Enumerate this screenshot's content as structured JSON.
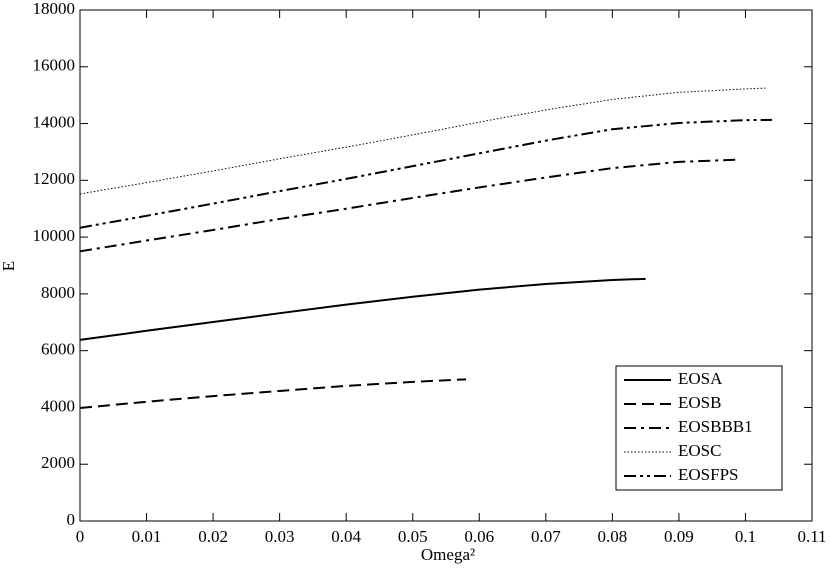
{
  "chart_data": {
    "type": "line",
    "x_label": "Omega²",
    "y_label": "E",
    "xlim": [
      0,
      0.11
    ],
    "xticks": [
      0,
      0.01,
      0.02,
      0.03,
      0.04,
      0.05,
      0.06,
      0.07,
      0.08,
      0.09,
      0.1,
      0.11
    ],
    "ylim": [
      0,
      18000
    ],
    "yticks": [
      0,
      2000,
      4000,
      6000,
      8000,
      10000,
      12000,
      14000,
      16000,
      18000
    ],
    "legend": "lower right",
    "series": [
      {
        "name": "EOSA",
        "color": "#000000",
        "dash": "solid",
        "x": [
          0,
          0.01,
          0.02,
          0.03,
          0.04,
          0.05,
          0.06,
          0.07,
          0.08,
          0.085
        ],
        "values": [
          6380,
          6700,
          7010,
          7320,
          7620,
          7900,
          8150,
          8350,
          8490,
          8530
        ]
      },
      {
        "name": "EOSB",
        "color": "#000000",
        "dash": "dashed",
        "x": [
          0,
          0.01,
          0.02,
          0.03,
          0.04,
          0.05,
          0.058
        ],
        "values": [
          3980,
          4200,
          4400,
          4580,
          4760,
          4900,
          4990
        ]
      },
      {
        "name": "EOSBBB1",
        "color": "#000000",
        "dash": "dashdot",
        "x": [
          0,
          0.01,
          0.02,
          0.03,
          0.04,
          0.05,
          0.06,
          0.07,
          0.08,
          0.09,
          0.099
        ],
        "values": [
          9500,
          9880,
          10250,
          10640,
          11000,
          11380,
          11750,
          12100,
          12430,
          12650,
          12730
        ]
      },
      {
        "name": "EOSC",
        "color": "#000000",
        "dash": "dotted",
        "x": [
          0,
          0.01,
          0.02,
          0.03,
          0.04,
          0.05,
          0.06,
          0.07,
          0.08,
          0.09,
          0.1,
          0.103
        ],
        "values": [
          11520,
          11920,
          12330,
          12760,
          13170,
          13600,
          14050,
          14480,
          14850,
          15100,
          15220,
          15250
        ]
      },
      {
        "name": "EOSFPS",
        "color": "#000000",
        "dash": "dashdotdot",
        "x": [
          0,
          0.01,
          0.02,
          0.03,
          0.04,
          0.05,
          0.06,
          0.07,
          0.08,
          0.09,
          0.1,
          0.104
        ],
        "values": [
          10330,
          10750,
          11180,
          11620,
          12050,
          12500,
          12950,
          13400,
          13800,
          14020,
          14120,
          14130
        ]
      }
    ]
  }
}
